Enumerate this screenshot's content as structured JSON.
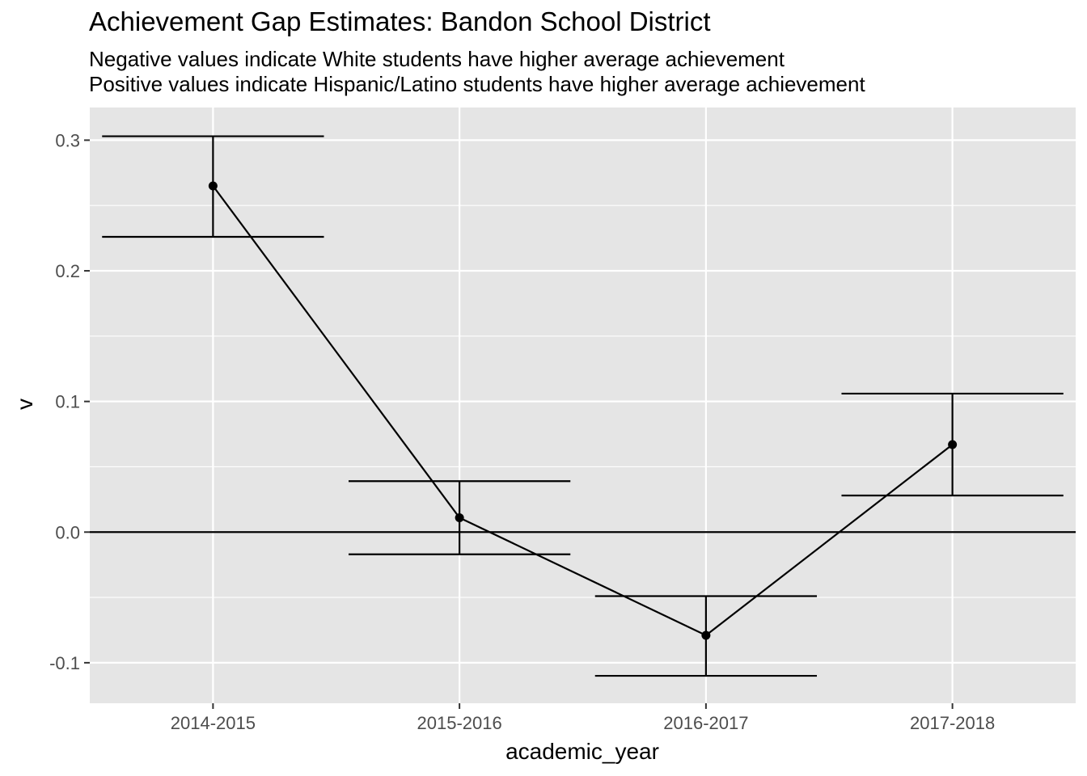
{
  "chart_data": {
    "type": "line",
    "title": "Achievement Gap Estimates: Bandon School District",
    "subtitle_lines": [
      "Negative values indicate White students have higher average achievement",
      "Positive values indicate Hispanic/Latino students have higher average achievement"
    ],
    "xlabel": "academic_year",
    "ylabel": "v",
    "categories": [
      "2014-2015",
      "2015-2016",
      "2016-2017",
      "2017-2018"
    ],
    "series": [
      {
        "values": [
          0.265,
          0.011,
          -0.079,
          0.067
        ],
        "lower": [
          0.226,
          -0.017,
          -0.11,
          0.028
        ],
        "upper": [
          0.303,
          0.039,
          -0.049,
          0.106
        ]
      }
    ],
    "y_ticks": [
      -0.1,
      0.0,
      0.1,
      0.2,
      0.3
    ],
    "y_tick_labels": [
      "-0.1",
      "0.0",
      "0.1",
      "0.2",
      "0.3"
    ],
    "ylim": [
      -0.131,
      0.325
    ],
    "reference_line": 0.0,
    "grid": true,
    "panel_background": "#e5e5e5",
    "grid_color": "#ffffff",
    "line_color": "#000000"
  }
}
